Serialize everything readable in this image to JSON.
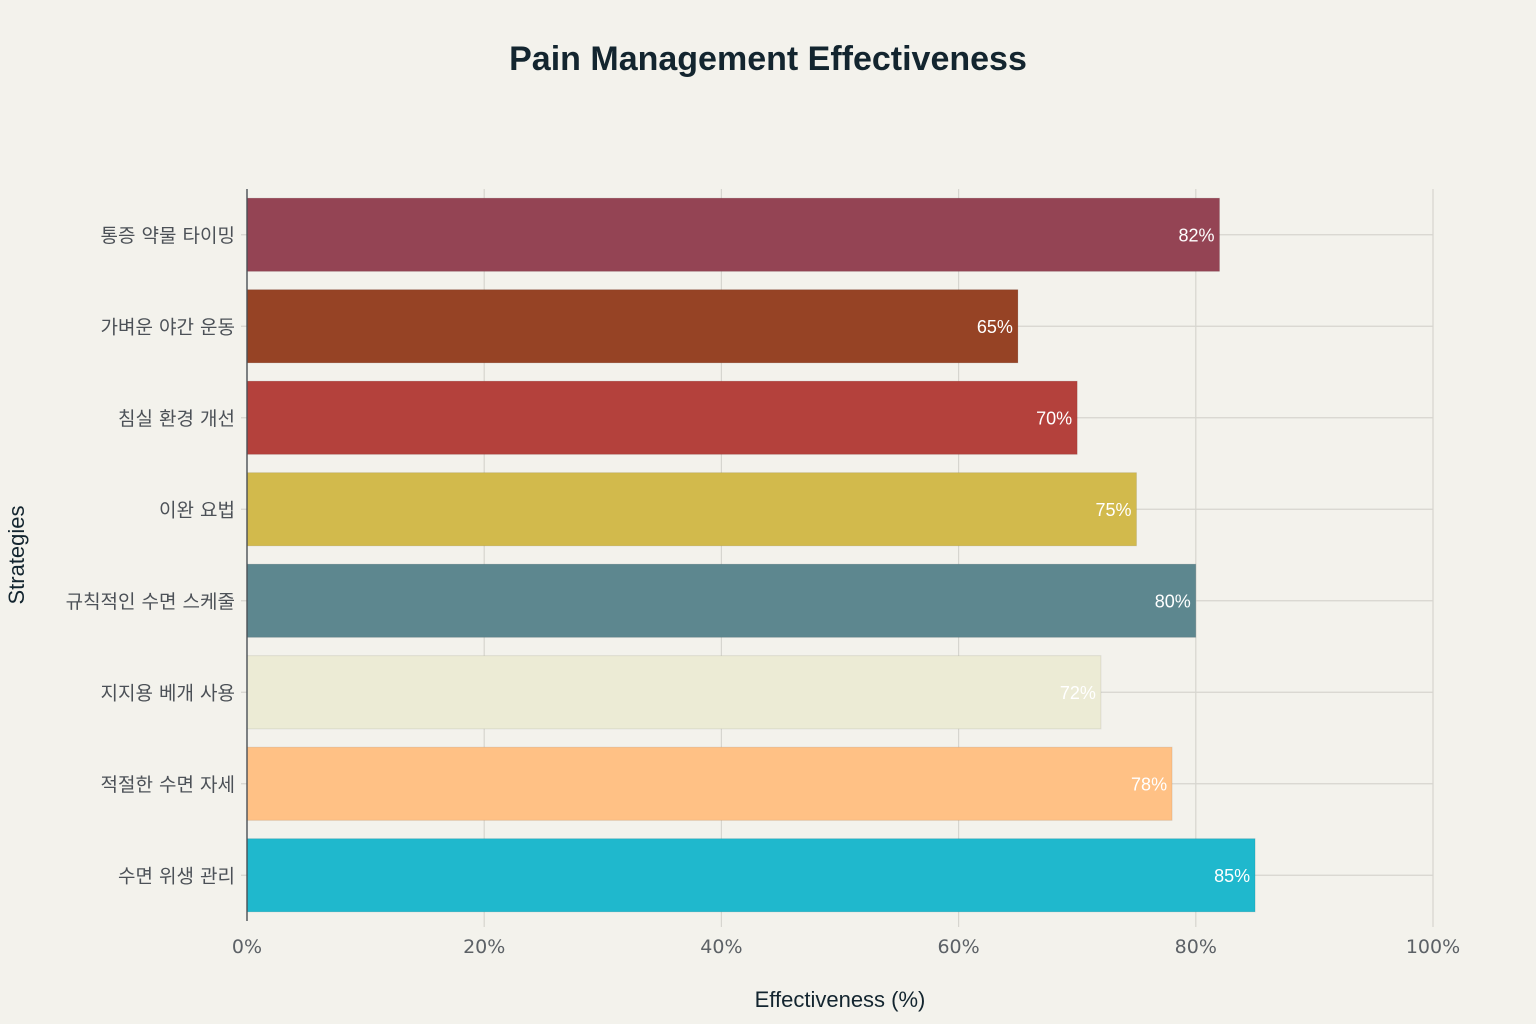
{
  "chart_data": {
    "type": "bar",
    "orientation": "horizontal",
    "title": "Pain Management Effectiveness",
    "xlabel": "Effectiveness (%)",
    "ylabel": "Strategies",
    "xlim": [
      0,
      100
    ],
    "x_ticks": [
      "0%",
      "20%",
      "40%",
      "60%",
      "80%",
      "100%"
    ],
    "x_tick_values": [
      0,
      20,
      40,
      60,
      80,
      100
    ],
    "grid": true,
    "legend": "none",
    "categories": [
      "통증 약물 타이밍",
      "가벼운 야간 운동",
      "침실 환경 개선",
      "이완 요법",
      "규칙적인 수면 스케줄",
      "지지용 베개 사용",
      "적절한 수면 자세",
      "수면 위생 관리"
    ],
    "values": [
      82,
      65,
      70,
      75,
      80,
      72,
      78,
      85
    ],
    "value_labels": [
      "82%",
      "65%",
      "70%",
      "75%",
      "80%",
      "72%",
      "78%",
      "85%"
    ],
    "colors": [
      "#944454",
      "#964325",
      "#b4413c",
      "#d2ba4c",
      "#5d878f",
      "#ecebd5",
      "#ffc185",
      "#1fb8cd"
    ]
  }
}
